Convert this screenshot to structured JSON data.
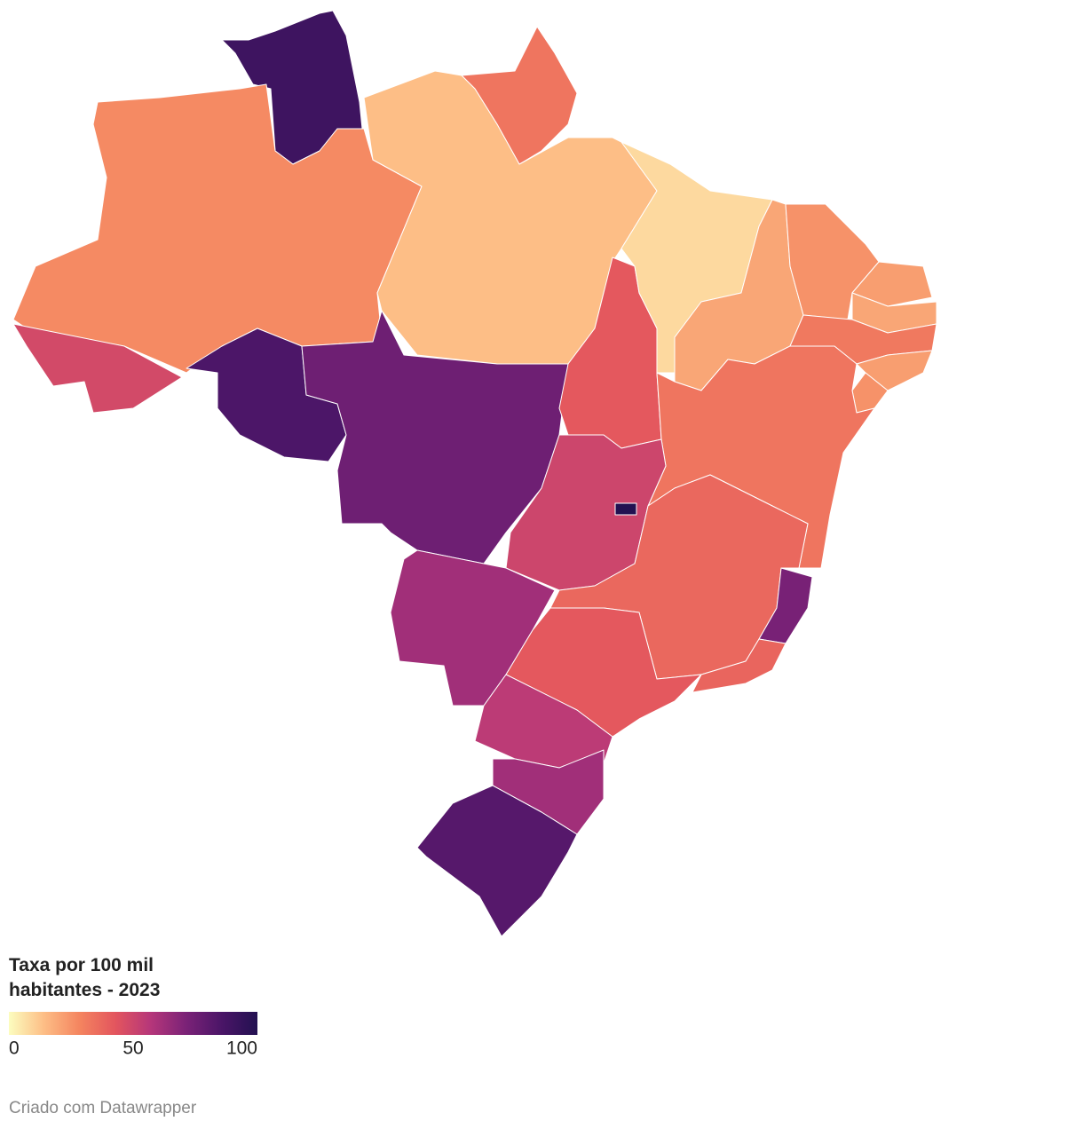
{
  "chart_data": {
    "type": "choropleth",
    "title": "Taxa por 100 mil habitantes - 2023",
    "values": [
      90,
      33,
      27,
      14,
      48,
      85,
      75,
      42,
      8,
      20,
      25,
      22,
      20,
      32,
      22,
      25,
      33,
      50,
      100,
      37,
      72,
      62,
      42,
      38,
      55,
      62,
      82
    ],
    "colorlim": [
      0,
      100
    ],
    "colorticks": [
      0,
      50,
      100
    ],
    "colorscale": [
      "#fcfdbf",
      "#fdbd85",
      "#f4845f",
      "#e3555e",
      "#b5367a",
      "#7a2277",
      "#4a1567",
      "#231151"
    ],
    "credit": "Criado com Datawrapper"
  }
}
